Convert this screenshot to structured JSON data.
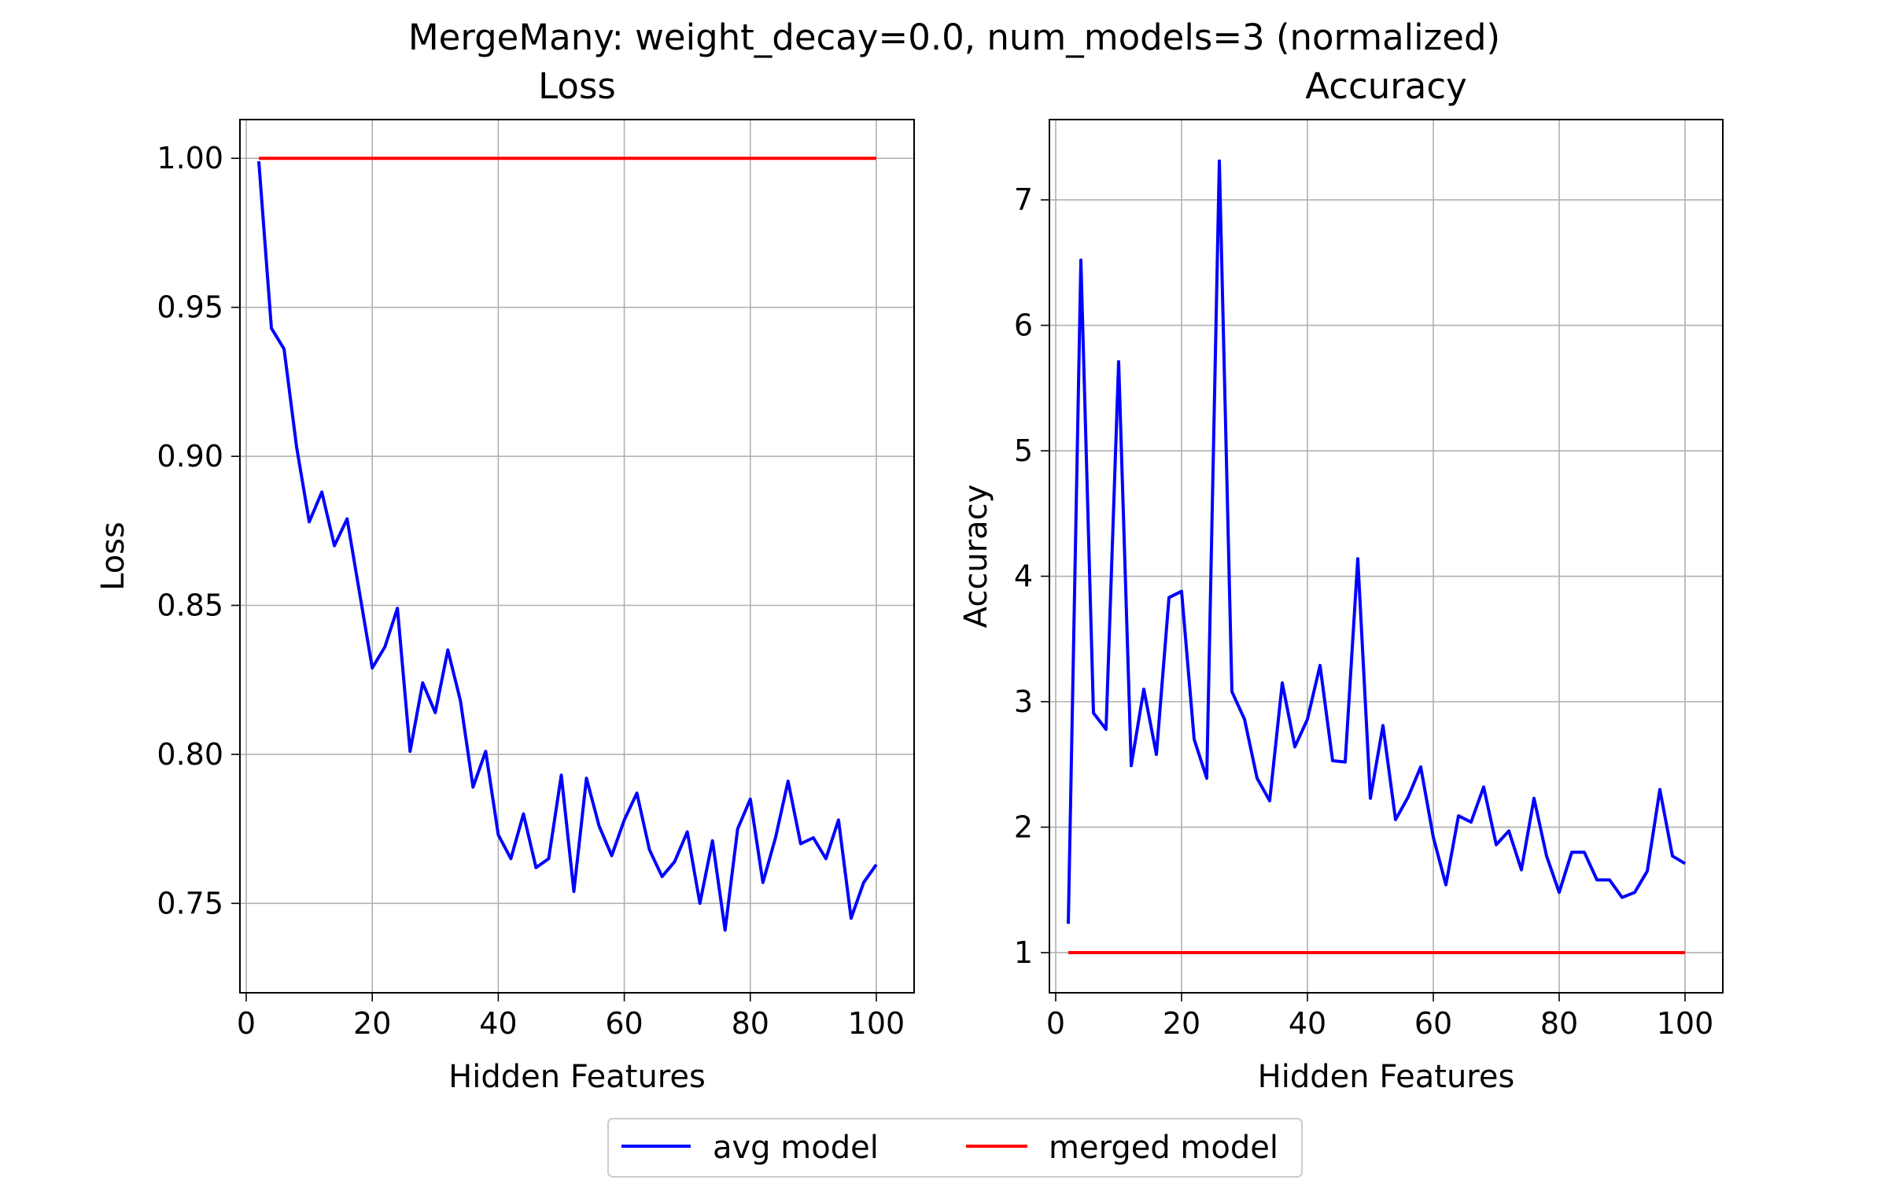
{
  "figure": {
    "suptitle": "MergeMany: weight_decay=0.0, num_models=3 (normalized)"
  },
  "legend": {
    "placement": "bottom-center",
    "entries": [
      {
        "label": "avg model",
        "color": "#0000ff"
      },
      {
        "label": "merged model",
        "color": "#ff0000"
      }
    ]
  },
  "chart_data": [
    {
      "type": "line",
      "title": "Loss",
      "xlabel": "Hidden Features",
      "ylabel": "Loss",
      "xlim": [
        -1,
        106
      ],
      "ylim": [
        0.72,
        1.013
      ],
      "xticks": [
        0,
        20,
        40,
        60,
        80,
        100
      ],
      "xtick_labels": [
        "0",
        "20",
        "40",
        "60",
        "80",
        "100"
      ],
      "yticks": [
        0.75,
        0.8,
        0.85,
        0.9,
        0.95,
        1.0
      ],
      "ytick_labels": [
        "0.75",
        "0.80",
        "0.85",
        "0.90",
        "0.95",
        "1.00"
      ],
      "grid": true,
      "x": [
        2,
        4,
        6,
        8,
        10,
        12,
        14,
        16,
        18,
        20,
        22,
        24,
        26,
        28,
        30,
        32,
        34,
        36,
        38,
        40,
        42,
        44,
        46,
        48,
        50,
        52,
        54,
        56,
        58,
        60,
        62,
        64,
        66,
        68,
        70,
        72,
        74,
        76,
        78,
        80,
        82,
        84,
        86,
        88,
        90,
        92,
        94,
        96,
        98,
        100
      ],
      "series": [
        {
          "name": "avg model",
          "color": "#0000ff",
          "values": [
            0.999,
            0.943,
            0.936,
            0.903,
            0.878,
            0.888,
            0.87,
            0.879,
            0.854,
            0.829,
            0.836,
            0.849,
            0.801,
            0.824,
            0.814,
            0.835,
            0.818,
            0.789,
            0.801,
            0.773,
            0.765,
            0.78,
            0.762,
            0.765,
            0.793,
            0.754,
            0.792,
            0.776,
            0.766,
            0.778,
            0.787,
            0.768,
            0.759,
            0.764,
            0.774,
            0.75,
            0.771,
            0.741,
            0.775,
            0.785,
            0.757,
            0.772,
            0.791,
            0.77,
            0.772,
            0.765,
            0.778,
            0.745,
            0.757,
            0.763
          ]
        },
        {
          "name": "merged model",
          "color": "#ff0000",
          "values": [
            1.0,
            1.0,
            1.0,
            1.0,
            1.0,
            1.0,
            1.0,
            1.0,
            1.0,
            1.0,
            1.0,
            1.0,
            1.0,
            1.0,
            1.0,
            1.0,
            1.0,
            1.0,
            1.0,
            1.0,
            1.0,
            1.0,
            1.0,
            1.0,
            1.0,
            1.0,
            1.0,
            1.0,
            1.0,
            1.0,
            1.0,
            1.0,
            1.0,
            1.0,
            1.0,
            1.0,
            1.0,
            1.0,
            1.0,
            1.0,
            1.0,
            1.0,
            1.0,
            1.0,
            1.0,
            1.0,
            1.0,
            1.0,
            1.0,
            1.0
          ]
        }
      ]
    },
    {
      "type": "line",
      "title": "Accuracy",
      "xlabel": "Hidden Features",
      "ylabel": "Accuracy",
      "xlim": [
        -1,
        106
      ],
      "ylim": [
        0.68,
        7.64
      ],
      "xticks": [
        0,
        20,
        40,
        60,
        80,
        100
      ],
      "xtick_labels": [
        "0",
        "20",
        "40",
        "60",
        "80",
        "100"
      ],
      "yticks": [
        1,
        2,
        3,
        4,
        5,
        6,
        7
      ],
      "ytick_labels": [
        "1",
        "2",
        "3",
        "4",
        "5",
        "6",
        "7"
      ],
      "grid": true,
      "x": [
        2,
        4,
        6,
        8,
        10,
        12,
        14,
        16,
        18,
        20,
        22,
        24,
        26,
        28,
        30,
        32,
        34,
        36,
        38,
        40,
        42,
        44,
        46,
        48,
        50,
        52,
        54,
        56,
        58,
        60,
        62,
        64,
        66,
        68,
        70,
        72,
        74,
        76,
        78,
        80,
        82,
        84,
        86,
        88,
        90,
        92,
        94,
        96,
        98,
        100
      ],
      "series": [
        {
          "name": "avg model",
          "color": "#0000ff",
          "values": [
            1.23,
            6.52,
            2.91,
            2.78,
            5.71,
            2.49,
            3.1,
            2.58,
            3.83,
            3.88,
            2.7,
            2.39,
            7.31,
            3.08,
            2.86,
            2.39,
            2.21,
            3.15,
            2.64,
            2.86,
            3.29,
            2.53,
            2.52,
            4.14,
            2.23,
            2.81,
            2.06,
            2.24,
            2.48,
            1.92,
            1.54,
            2.09,
            2.04,
            2.32,
            1.86,
            1.97,
            1.66,
            2.23,
            1.77,
            1.48,
            1.8,
            1.8,
            1.58,
            1.58,
            1.44,
            1.48,
            1.65,
            2.3,
            1.77,
            1.71
          ]
        },
        {
          "name": "merged model",
          "color": "#ff0000",
          "values": [
            1.0,
            1.0,
            1.0,
            1.0,
            1.0,
            1.0,
            1.0,
            1.0,
            1.0,
            1.0,
            1.0,
            1.0,
            1.0,
            1.0,
            1.0,
            1.0,
            1.0,
            1.0,
            1.0,
            1.0,
            1.0,
            1.0,
            1.0,
            1.0,
            1.0,
            1.0,
            1.0,
            1.0,
            1.0,
            1.0,
            1.0,
            1.0,
            1.0,
            1.0,
            1.0,
            1.0,
            1.0,
            1.0,
            1.0,
            1.0,
            1.0,
            1.0,
            1.0,
            1.0,
            1.0,
            1.0,
            1.0,
            1.0,
            1.0,
            1.0
          ]
        }
      ]
    }
  ]
}
